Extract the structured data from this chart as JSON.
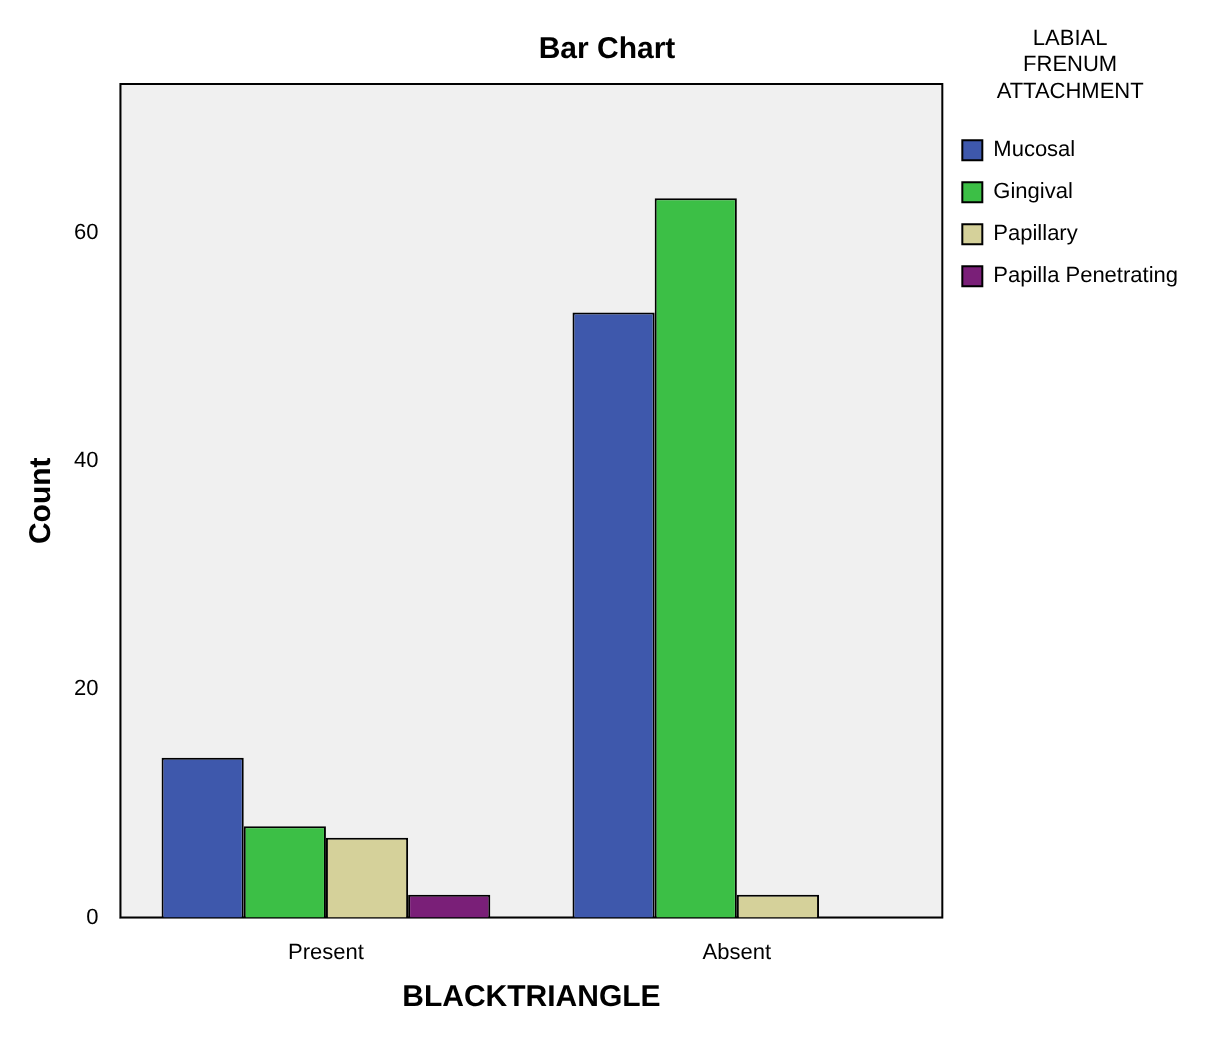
{
  "chart_data": {
    "type": "bar",
    "title": "Bar Chart",
    "xlabel": "BLACKTRIANGLE",
    "ylabel": "Count",
    "legend_title": "LABIAL FRENUM ATTACHMENT",
    "categories": [
      "Present",
      "Absent"
    ],
    "series": [
      {
        "name": "Mucosal",
        "color": "#3e58ac",
        "values": [
          14,
          53
        ]
      },
      {
        "name": "Gingival",
        "color": "#3cbf46",
        "values": [
          8,
          63
        ]
      },
      {
        "name": "Papillary",
        "color": "#d5d19a",
        "values": [
          7,
          2
        ]
      },
      {
        "name": "Papilla Penetrating",
        "color": "#7a1f78",
        "values": [
          2,
          0
        ]
      }
    ],
    "ylim": [
      0,
      73
    ],
    "yticks": [
      0,
      20,
      40,
      60
    ],
    "grid": false,
    "legend": "right"
  }
}
